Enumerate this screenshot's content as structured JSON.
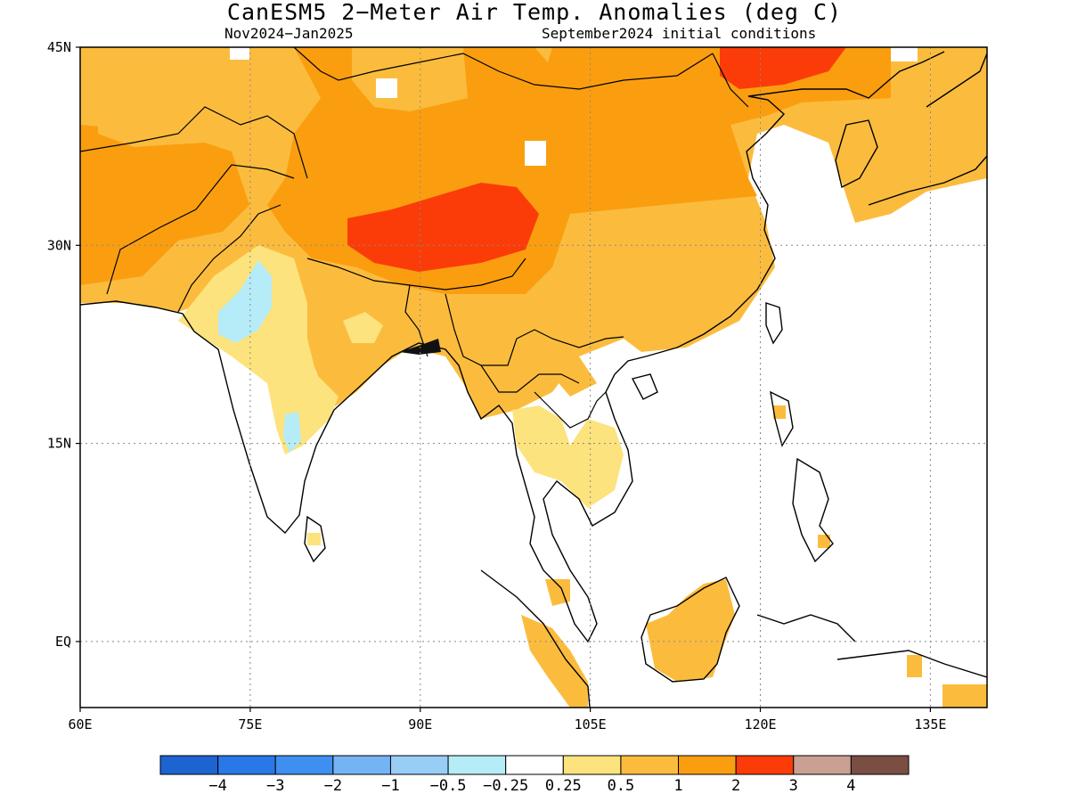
{
  "title": "CanESM5 2−Meter Air Temp. Anomalies (deg C)",
  "subtitle_left": "Nov2024−Jan2025",
  "subtitle_right": "September2024 initial conditions",
  "map": {
    "lon_range": [
      60,
      140
    ],
    "lat_range": [
      -5,
      45
    ],
    "lon_ticks": [
      {
        "value": 60,
        "label": "60E"
      },
      {
        "value": 75,
        "label": "75E"
      },
      {
        "value": 90,
        "label": "90E"
      },
      {
        "value": 105,
        "label": "105E"
      },
      {
        "value": 120,
        "label": "120E"
      },
      {
        "value": 135,
        "label": "135E"
      }
    ],
    "lat_ticks": [
      {
        "value": 45,
        "label": "45N"
      },
      {
        "value": 30,
        "label": "30N"
      },
      {
        "value": 15,
        "label": "15N"
      },
      {
        "value": 0,
        "label": "EQ"
      }
    ],
    "gridlines": "dotted"
  },
  "colorbar": {
    "colors": [
      "#1e63d2",
      "#2a77e8",
      "#3f8ff0",
      "#74b4f4",
      "#98cdf6",
      "#b5ecf7",
      "#ffffff",
      "#fde37d",
      "#fbbc3e",
      "#fa9e10",
      "#fb3c08",
      "#c9a092",
      "#7b4e43"
    ],
    "labels": [
      "−4",
      "−3",
      "−2",
      "−1",
      "−0.5",
      "−0.25",
      "0.25",
      "0.5",
      "1",
      "2",
      "3",
      "4"
    ]
  }
}
